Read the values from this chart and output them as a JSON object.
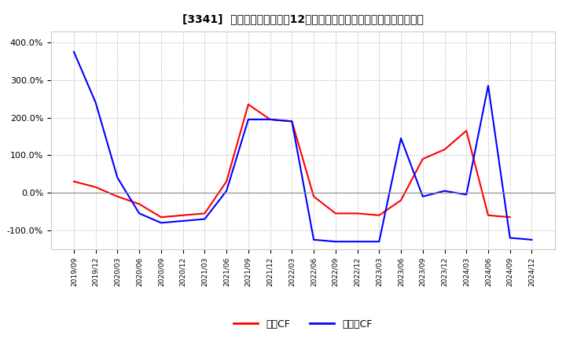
{
  "title": "[3341]  キャッシュフローの12か月移動合計の対前年同期増減率の推移",
  "xlabel": "",
  "ylabel": "",
  "ylim": [
    -150,
    430
  ],
  "yticks": [
    -100,
    0,
    100,
    200,
    300,
    400
  ],
  "ytick_labels": [
    "-100.0%",
    "0.0%",
    "100.0%",
    "200.0%",
    "300.0%",
    "400.0%"
  ],
  "background_color": "#ffffff",
  "grid_color": "#aaaaaa",
  "legend_labels": [
    "営業CF",
    "フリーCF"
  ],
  "legend_colors": [
    "#ff0000",
    "#0000ff"
  ],
  "x_labels": [
    "2019/09",
    "2019/12",
    "2020/03",
    "2020/06",
    "2020/09",
    "2020/12",
    "2021/03",
    "2021/06",
    "2021/09",
    "2021/12",
    "2022/03",
    "2022/06",
    "2022/09",
    "2022/12",
    "2023/03",
    "2023/06",
    "2023/09",
    "2023/12",
    "2024/03",
    "2024/06",
    "2024/09",
    "2024/12"
  ],
  "operating_cf": [
    30,
    15,
    -10,
    -30,
    -65,
    -60,
    -55,
    30,
    235,
    195,
    190,
    -10,
    -55,
    -55,
    -60,
    -20,
    90,
    115,
    165,
    -60,
    -65,
    null
  ],
  "free_cf": [
    375,
    240,
    40,
    -55,
    -80,
    -75,
    -70,
    5,
    195,
    195,
    190,
    -125,
    -130,
    -130,
    -130,
    145,
    -10,
    5,
    -5,
    285,
    -120,
    -125
  ]
}
